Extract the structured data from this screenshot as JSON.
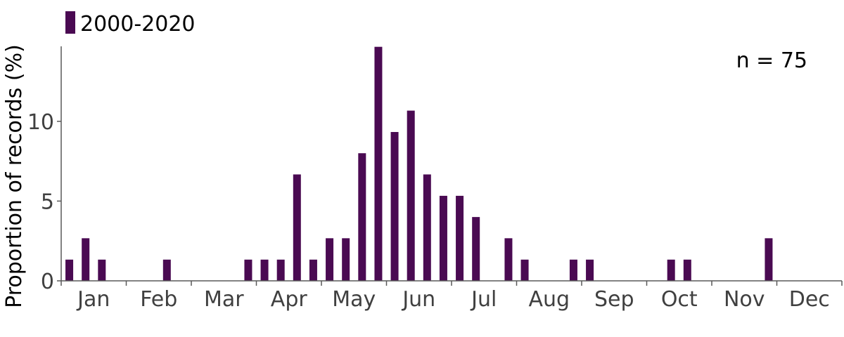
{
  "chart_data": {
    "type": "bar",
    "ylabel": "Proportion of records (%)",
    "ylim": [
      0,
      14.7
    ],
    "yticks": [
      0,
      5,
      10
    ],
    "months": [
      "Jan",
      "Feb",
      "Mar",
      "Apr",
      "May",
      "Jun",
      "Jul",
      "Aug",
      "Sep",
      "Oct",
      "Nov",
      "Dec"
    ],
    "bins_per_month": 4,
    "legend_position": "top-left",
    "grid": false,
    "annotation": "n = 75",
    "series": [
      {
        "name": "2000-2020",
        "color": "#4a0a52",
        "values": [
          1.33,
          2.67,
          1.33,
          0,
          0,
          0,
          1.33,
          0,
          0,
          0,
          0,
          1.33,
          1.33,
          1.33,
          6.67,
          1.33,
          2.67,
          2.67,
          8.0,
          14.67,
          9.33,
          10.67,
          6.67,
          5.33,
          5.33,
          4.0,
          0,
          2.67,
          1.33,
          0,
          0,
          1.33,
          1.33,
          0,
          0,
          0,
          0,
          1.33,
          1.33,
          0,
          0,
          0,
          0,
          2.67,
          0,
          0,
          0,
          0
        ]
      }
    ]
  }
}
